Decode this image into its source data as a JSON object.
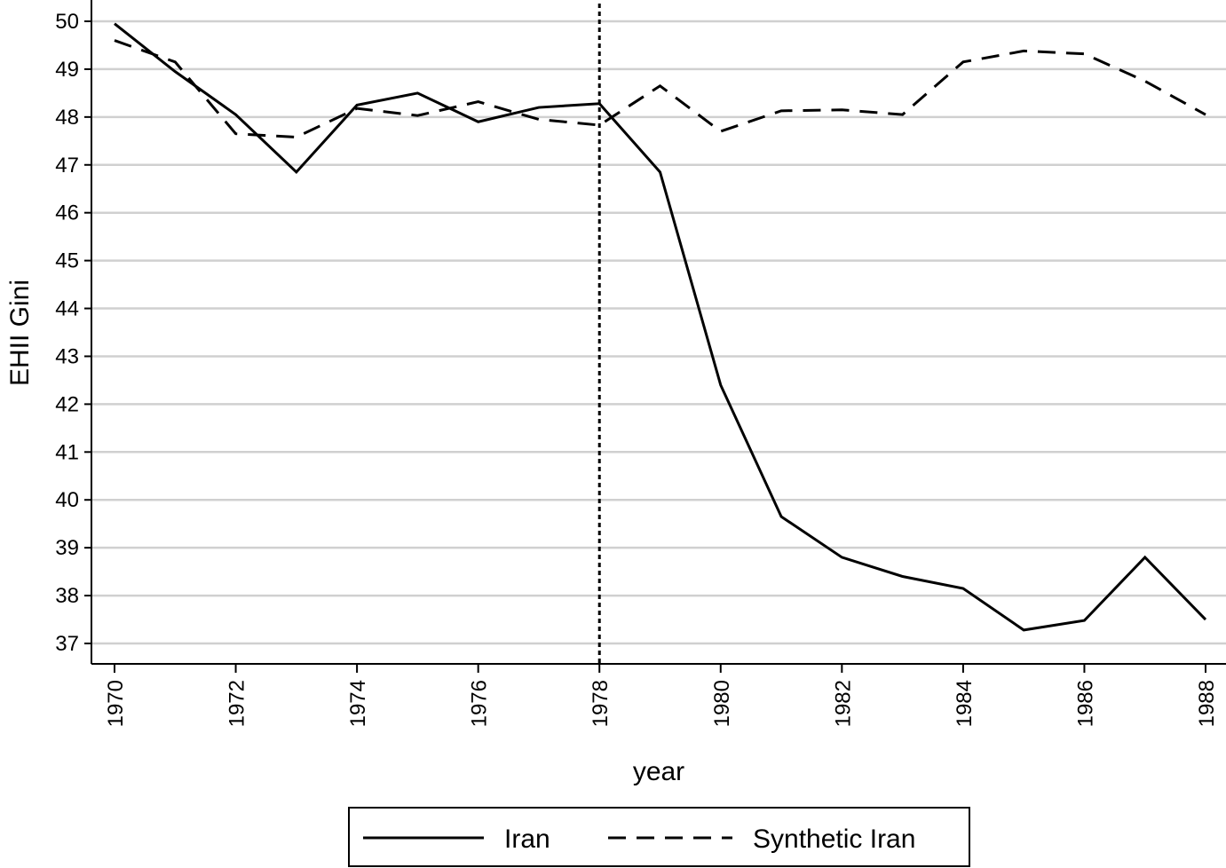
{
  "chart_data": {
    "type": "line",
    "title": "",
    "xlabel": "year",
    "ylabel": "EHII Gini",
    "x": [
      1970,
      1971,
      1972,
      1973,
      1974,
      1975,
      1976,
      1977,
      1978,
      1979,
      1980,
      1981,
      1982,
      1983,
      1984,
      1985,
      1986,
      1987,
      1988
    ],
    "xlim": [
      1970,
      1988
    ],
    "ylim": [
      37,
      50
    ],
    "x_ticks": [
      "1970",
      "1972",
      "1974",
      "1976",
      "1978",
      "1980",
      "1982",
      "1984",
      "1986",
      "1988"
    ],
    "y_ticks": [
      "37",
      "38",
      "39",
      "40",
      "41",
      "42",
      "43",
      "44",
      "45",
      "46",
      "47",
      "48",
      "49",
      "50"
    ],
    "grid": true,
    "legend_position": "bottom",
    "reference_line": {
      "x": 1978,
      "style": "dotted"
    },
    "series": [
      {
        "name": "Iran",
        "style": "solid",
        "color": "#000000",
        "values": [
          49.95,
          48.95,
          48.05,
          46.85,
          48.25,
          48.5,
          47.9,
          48.2,
          48.28,
          46.85,
          42.4,
          39.65,
          38.8,
          38.4,
          38.15,
          37.28,
          37.48,
          38.8,
          37.5
        ]
      },
      {
        "name": "Synthetic Iran",
        "style": "dashed",
        "color": "#000000",
        "values": [
          49.6,
          49.15,
          47.65,
          47.58,
          48.18,
          48.03,
          48.32,
          47.95,
          47.83,
          48.65,
          47.7,
          48.13,
          48.15,
          48.05,
          49.15,
          49.38,
          49.32,
          48.75,
          48.05
        ]
      }
    ]
  }
}
